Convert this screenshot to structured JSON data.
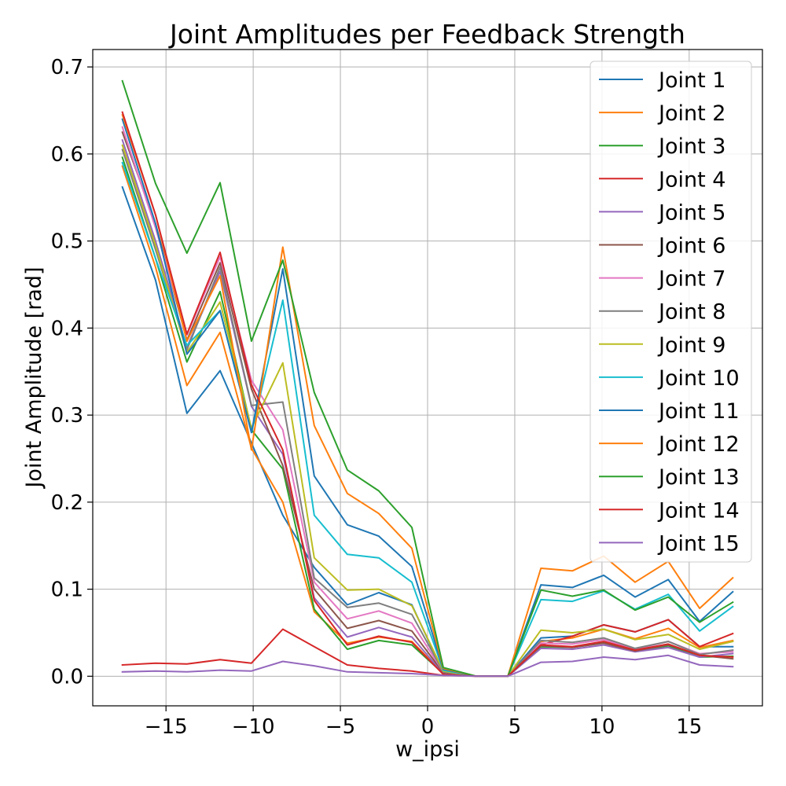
{
  "chart_data": {
    "type": "line",
    "title": "Joint Amplitudes per Feedback Strength",
    "xlabel": "w_ipsi",
    "ylabel": "Joint Amplitude [rad]",
    "xlim": [
      -19.2,
      19.2
    ],
    "ylim": [
      -0.034,
      0.72
    ],
    "xticks": [
      -15,
      -10,
      -5,
      0,
      5,
      10,
      15
    ],
    "xtick_labels": [
      "−15",
      "−10",
      "−5",
      "0",
      "5",
      "10",
      "15"
    ],
    "yticks": [
      0.0,
      0.1,
      0.2,
      0.3,
      0.4,
      0.5,
      0.6,
      0.7
    ],
    "ytick_labels": [
      "0.0",
      "0.1",
      "0.2",
      "0.3",
      "0.4",
      "0.5",
      "0.6",
      "0.7"
    ],
    "grid": true,
    "legend_position": "top-right",
    "x": [
      -17.5,
      -15.6,
      -13.8,
      -11.9,
      -10.1,
      -8.3,
      -6.5,
      -4.6,
      -2.8,
      -0.9,
      0.9,
      2.8,
      4.6,
      6.5,
      8.3,
      10.1,
      11.9,
      13.8,
      15.6,
      17.5
    ],
    "series": [
      {
        "name": "Joint 1",
        "color": "#1f77b4",
        "values": [
          0.562,
          0.455,
          0.302,
          0.351,
          0.268,
          0.185,
          0.125,
          0.082,
          0.096,
          0.082,
          0.004,
          0.0,
          0.0,
          0.044,
          0.046,
          0.059,
          0.051,
          0.065,
          0.034,
          0.034
        ]
      },
      {
        "name": "Joint 2",
        "color": "#ff7f0e",
        "values": [
          0.586,
          0.47,
          0.334,
          0.395,
          0.262,
          0.2,
          0.074,
          0.038,
          0.045,
          0.04,
          0.003,
          0.0,
          0.0,
          0.04,
          0.044,
          0.054,
          0.043,
          0.055,
          0.033,
          0.041
        ]
      },
      {
        "name": "Joint 3",
        "color": "#2ca02c",
        "values": [
          0.596,
          0.48,
          0.361,
          0.442,
          0.283,
          0.238,
          0.077,
          0.031,
          0.041,
          0.036,
          0.003,
          0.0,
          0.0,
          0.034,
          0.033,
          0.039,
          0.029,
          0.035,
          0.022,
          0.023
        ]
      },
      {
        "name": "Joint 4",
        "color": "#d62728",
        "values": [
          0.013,
          0.015,
          0.014,
          0.019,
          0.015,
          0.054,
          0.034,
          0.013,
          0.009,
          0.006,
          0.001,
          0.0,
          0.0,
          0.036,
          0.046,
          0.059,
          0.051,
          0.065,
          0.034,
          0.049
        ]
      },
      {
        "name": "Joint 5",
        "color": "#9467bd",
        "values": [
          0.616,
          0.5,
          0.378,
          0.465,
          0.31,
          0.255,
          0.09,
          0.045,
          0.056,
          0.045,
          0.003,
          0.0,
          0.0,
          0.032,
          0.031,
          0.036,
          0.028,
          0.033,
          0.022,
          0.026
        ]
      },
      {
        "name": "Joint 6",
        "color": "#8c564b",
        "values": [
          0.625,
          0.52,
          0.386,
          0.475,
          0.33,
          0.242,
          0.1,
          0.055,
          0.064,
          0.052,
          0.004,
          0.0,
          0.0,
          0.035,
          0.033,
          0.038,
          0.029,
          0.036,
          0.024,
          0.02
        ]
      },
      {
        "name": "Joint 7",
        "color": "#e377c2",
        "values": [
          0.631,
          0.515,
          0.392,
          0.482,
          0.34,
          0.283,
          0.108,
          0.066,
          0.075,
          0.061,
          0.005,
          0.0,
          0.0,
          0.038,
          0.037,
          0.042,
          0.031,
          0.04,
          0.026,
          0.028
        ]
      },
      {
        "name": "Joint 8",
        "color": "#7f7f7f",
        "values": [
          0.605,
          0.49,
          0.375,
          0.47,
          0.311,
          0.315,
          0.113,
          0.079,
          0.084,
          0.071,
          0.005,
          0.0,
          0.0,
          0.041,
          0.039,
          0.044,
          0.032,
          0.04,
          0.025,
          0.03
        ]
      },
      {
        "name": "Joint 9",
        "color": "#bcbd22",
        "values": [
          0.61,
          0.495,
          0.372,
          0.43,
          0.285,
          0.36,
          0.136,
          0.099,
          0.1,
          0.081,
          0.006,
          0.0,
          0.0,
          0.053,
          0.05,
          0.054,
          0.042,
          0.048,
          0.031,
          0.04
        ]
      },
      {
        "name": "Joint 10",
        "color": "#17becf",
        "values": [
          0.59,
          0.48,
          0.38,
          0.42,
          0.28,
          0.432,
          0.185,
          0.14,
          0.136,
          0.108,
          0.007,
          0.0,
          0.0,
          0.088,
          0.086,
          0.098,
          0.077,
          0.094,
          0.052,
          0.08
        ]
      },
      {
        "name": "Joint 11",
        "color": "#1f77b4",
        "values": [
          0.64,
          0.52,
          0.37,
          0.42,
          0.28,
          0.468,
          0.23,
          0.174,
          0.161,
          0.126,
          0.008,
          0.0,
          0.0,
          0.105,
          0.102,
          0.116,
          0.091,
          0.111,
          0.063,
          0.097
        ]
      },
      {
        "name": "Joint 12",
        "color": "#ff7f0e",
        "values": [
          0.645,
          0.53,
          0.385,
          0.46,
          0.26,
          0.493,
          0.288,
          0.21,
          0.187,
          0.147,
          0.009,
          0.0,
          0.0,
          0.124,
          0.121,
          0.138,
          0.108,
          0.132,
          0.078,
          0.113
        ]
      },
      {
        "name": "Joint 13",
        "color": "#2ca02c",
        "values": [
          0.684,
          0.566,
          0.486,
          0.567,
          0.385,
          0.478,
          0.326,
          0.237,
          0.213,
          0.171,
          0.01,
          0.0,
          0.0,
          0.099,
          0.092,
          0.099,
          0.076,
          0.091,
          0.062,
          0.085
        ]
      },
      {
        "name": "Joint 14",
        "color": "#d62728",
        "values": [
          0.648,
          0.53,
          0.393,
          0.487,
          0.335,
          0.26,
          0.087,
          0.036,
          0.046,
          0.039,
          0.002,
          0.0,
          0.0,
          0.036,
          0.034,
          0.04,
          0.03,
          0.037,
          0.024,
          0.022
        ]
      },
      {
        "name": "Joint 15",
        "color": "#9467bd",
        "values": [
          0.005,
          0.006,
          0.005,
          0.007,
          0.006,
          0.017,
          0.012,
          0.005,
          0.004,
          0.003,
          0.001,
          0.0,
          0.0,
          0.016,
          0.017,
          0.022,
          0.019,
          0.024,
          0.013,
          0.011
        ]
      }
    ]
  }
}
